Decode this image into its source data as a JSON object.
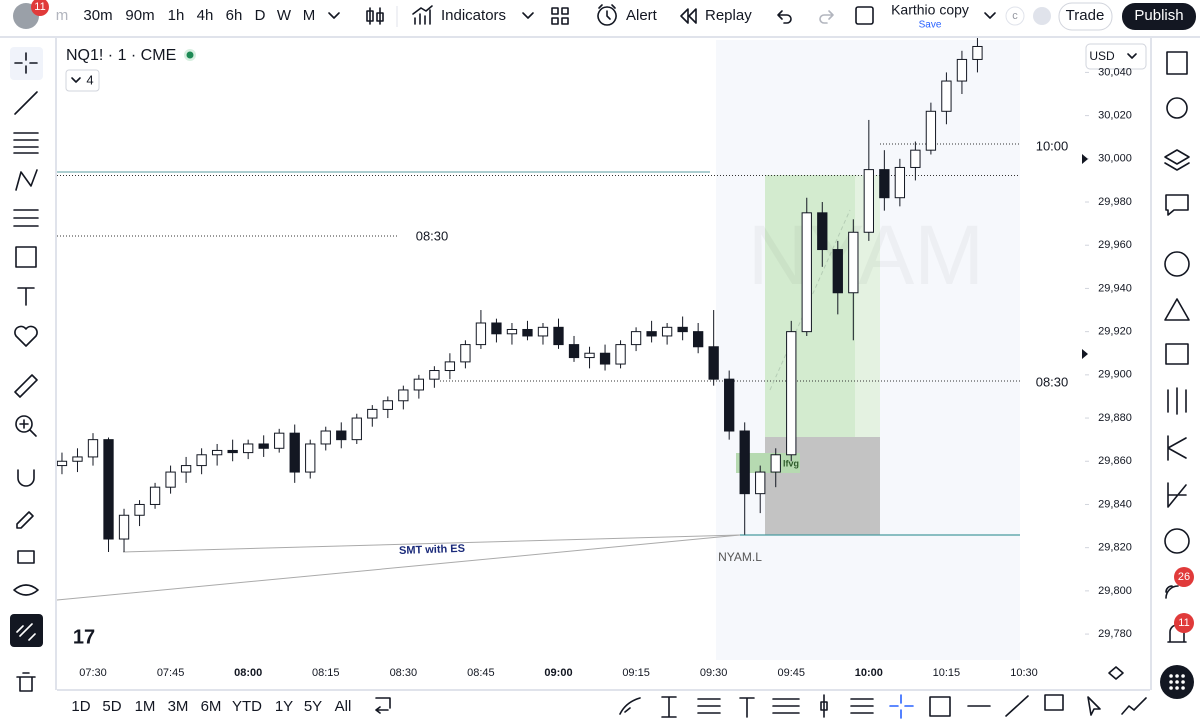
{
  "topbar": {
    "avatar_badge": 11,
    "intervals": [
      "m",
      "30m",
      "90m",
      "1h",
      "4h",
      "6h",
      "D",
      "W",
      "M"
    ],
    "indicators": "Indicators",
    "alert": "Alert",
    "replay": "Replay",
    "layout_name": "Karthio copy",
    "layout_status": "Save",
    "currency_toggle": "c",
    "trade": "Trade",
    "publish": "Publish"
  },
  "legend": {
    "symbol": "NQ1! · 1 · CME",
    "collapsed_count": 4
  },
  "price_scale": {
    "currency": "USD"
  },
  "range_bar": {
    "ranges": [
      "1D",
      "5D",
      "1M",
      "3M",
      "6M",
      "YTD",
      "1Y",
      "5Y",
      "All"
    ]
  },
  "sidebar": {
    "badges": [
      26,
      11
    ]
  },
  "chart_data": {
    "type": "candlestick",
    "up_color": "#ffffff",
    "down_color": "#131722",
    "ylim": [
      29768,
      30055
    ],
    "yticks": [
      {
        "value": 29780,
        "label": "29,780"
      },
      {
        "value": 29800,
        "label": "29,800"
      },
      {
        "value": 29820,
        "label": "29,820"
      },
      {
        "value": 29840,
        "label": "29,840"
      },
      {
        "value": 29860,
        "label": "29,860"
      },
      {
        "value": 29880,
        "label": "29,880"
      },
      {
        "value": 29900,
        "label": "29,900"
      },
      {
        "value": 29920,
        "label": "29,920"
      },
      {
        "value": 29940,
        "label": "29,940"
      },
      {
        "value": 29960,
        "label": "29,960"
      },
      {
        "value": 29980,
        "label": "29,980"
      },
      {
        "value": 30000,
        "label": "30,000"
      },
      {
        "value": 30020,
        "label": "30,020"
      },
      {
        "value": 30040,
        "label": "30,040"
      }
    ],
    "xticks": [
      "07:30",
      "07:45",
      "08:00",
      "08:15",
      "08:30",
      "08:45",
      "09:00",
      "09:15",
      "09:30",
      "09:45",
      "10:00",
      "10:15",
      "10:30"
    ],
    "x": [
      "07:24",
      "07:27",
      "07:30",
      "07:33",
      "07:36",
      "07:39",
      "07:42",
      "07:45",
      "07:48",
      "07:51",
      "07:54",
      "07:57",
      "08:00",
      "08:03",
      "08:06",
      "08:09",
      "08:12",
      "08:15",
      "08:18",
      "08:21",
      "08:24",
      "08:27",
      "08:30",
      "08:33",
      "08:36",
      "08:39",
      "08:42",
      "08:45",
      "08:48",
      "08:51",
      "08:54",
      "08:57",
      "09:00",
      "09:03",
      "09:06",
      "09:09",
      "09:12",
      "09:15",
      "09:18",
      "09:21",
      "09:24",
      "09:27",
      "09:30",
      "09:33",
      "09:36",
      "09:39",
      "09:42",
      "09:45",
      "09:48",
      "09:51",
      "09:54",
      "09:57",
      "10:00",
      "10:03",
      "10:06",
      "10:09",
      "10:12",
      "10:15",
      "10:18",
      "10:21"
    ],
    "ohlc": [
      [
        29858,
        29864,
        29854,
        29860
      ],
      [
        29860,
        29866,
        29855,
        29862
      ],
      [
        29862,
        29873,
        29858,
        29870
      ],
      [
        29870,
        29871,
        29818,
        29824
      ],
      [
        29824,
        29838,
        29818,
        29835
      ],
      [
        29835,
        29842,
        29830,
        29840
      ],
      [
        29840,
        29850,
        29838,
        29848
      ],
      [
        29848,
        29858,
        29845,
        29855
      ],
      [
        29855,
        29862,
        29850,
        29858
      ],
      [
        29858,
        29866,
        29854,
        29863
      ],
      [
        29863,
        29868,
        29858,
        29865
      ],
      [
        29865,
        29870,
        29860,
        29864
      ],
      [
        29864,
        29870,
        29861,
        29868
      ],
      [
        29868,
        29872,
        29862,
        29866
      ],
      [
        29866,
        29875,
        29864,
        29873
      ],
      [
        29873,
        29877,
        29850,
        29855
      ],
      [
        29855,
        29870,
        29852,
        29868
      ],
      [
        29868,
        29876,
        29865,
        29874
      ],
      [
        29874,
        29878,
        29866,
        29870
      ],
      [
        29870,
        29882,
        29868,
        29880
      ],
      [
        29880,
        29886,
        29876,
        29884
      ],
      [
        29884,
        29890,
        29880,
        29888
      ],
      [
        29888,
        29895,
        29884,
        29893
      ],
      [
        29893,
        29900,
        29889,
        29898
      ],
      [
        29898,
        29904,
        29894,
        29902
      ],
      [
        29902,
        29910,
        29898,
        29906
      ],
      [
        29906,
        29916,
        29903,
        29914
      ],
      [
        29914,
        29930,
        29912,
        29924
      ],
      [
        29924,
        29926,
        29915,
        29919
      ],
      [
        29919,
        29924,
        29914,
        29921
      ],
      [
        29921,
        29925,
        29916,
        29918
      ],
      [
        29918,
        29924,
        29914,
        29922
      ],
      [
        29922,
        29926,
        29912,
        29914
      ],
      [
        29914,
        29918,
        29906,
        29908
      ],
      [
        29908,
        29913,
        29903,
        29910
      ],
      [
        29910,
        29914,
        29902,
        29905
      ],
      [
        29905,
        29916,
        29903,
        29914
      ],
      [
        29914,
        29922,
        29911,
        29920
      ],
      [
        29920,
        29925,
        29915,
        29918
      ],
      [
        29918,
        29924,
        29914,
        29922
      ],
      [
        29922,
        29927,
        29916,
        29920
      ],
      [
        29920,
        29924,
        29910,
        29913
      ],
      [
        29913,
        29930,
        29895,
        29898
      ],
      [
        29898,
        29902,
        29870,
        29874
      ],
      [
        29874,
        29878,
        29826,
        29845
      ],
      [
        29845,
        29858,
        29836,
        29855
      ],
      [
        29855,
        29866,
        29848,
        29863
      ],
      [
        29863,
        29925,
        29860,
        29920
      ],
      [
        29920,
        29982,
        29918,
        29975
      ],
      [
        29975,
        29980,
        29950,
        29958
      ],
      [
        29958,
        29962,
        29928,
        29938
      ],
      [
        29938,
        29972,
        29916,
        29966
      ],
      [
        29966,
        30018,
        29962,
        29995
      ],
      [
        29995,
        30004,
        29976,
        29982
      ],
      [
        29982,
        30000,
        29978,
        29996
      ],
      [
        29996,
        30008,
        29990,
        30004
      ],
      [
        30004,
        30026,
        30002,
        30022
      ],
      [
        30022,
        30040,
        30016,
        30036
      ],
      [
        30036,
        30050,
        30030,
        30046
      ],
      [
        30046,
        30058,
        30040,
        30052
      ]
    ],
    "annotations": [
      "NYAM",
      "08:30",
      "10:00",
      "08:30",
      "lfvg",
      "SMT with ES",
      "NYAM.L"
    ]
  }
}
